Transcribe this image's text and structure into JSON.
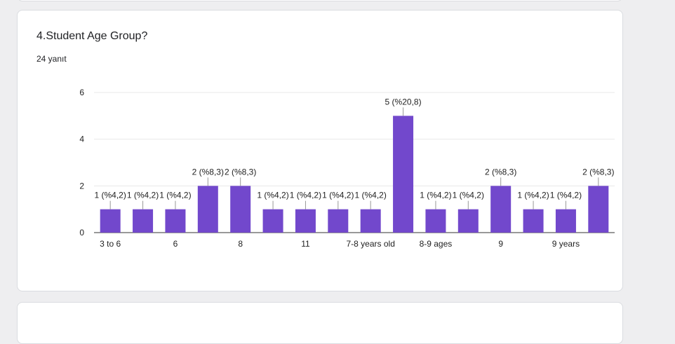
{
  "question": {
    "title": "4.Student Age Group?",
    "response_count": "24 yanıt"
  },
  "chart_data": {
    "type": "bar",
    "title": "4.Student Age Group?",
    "categories": [
      "3 to 6",
      "",
      "6",
      "",
      "8",
      "",
      "11",
      "",
      "7-8 years old",
      "",
      "8-9 ages",
      "",
      "9",
      "",
      "9 years",
      ""
    ],
    "values": [
      1,
      1,
      1,
      2,
      2,
      1,
      1,
      1,
      1,
      5,
      1,
      1,
      2,
      1,
      1,
      2
    ],
    "data_labels": [
      "1 (%4,2)",
      "1 (%4,2)",
      "1 (%4,2)",
      "2 (%8,3)",
      "2 (%8,3)",
      "1 (%4,2)",
      "1 (%4,2)",
      "1 (%4,2)",
      "1 (%4,2)",
      "5 (%20,8)",
      "1 (%4,2)",
      "1 (%4,2)",
      "2 (%8,3)",
      "1 (%4,2)",
      "1 (%4,2)",
      "2 (%8,3)"
    ],
    "ylim": [
      0,
      6
    ],
    "yticks": [
      "0",
      "2",
      "4",
      "6"
    ],
    "grid": true,
    "bar_color": "#7248cc"
  }
}
